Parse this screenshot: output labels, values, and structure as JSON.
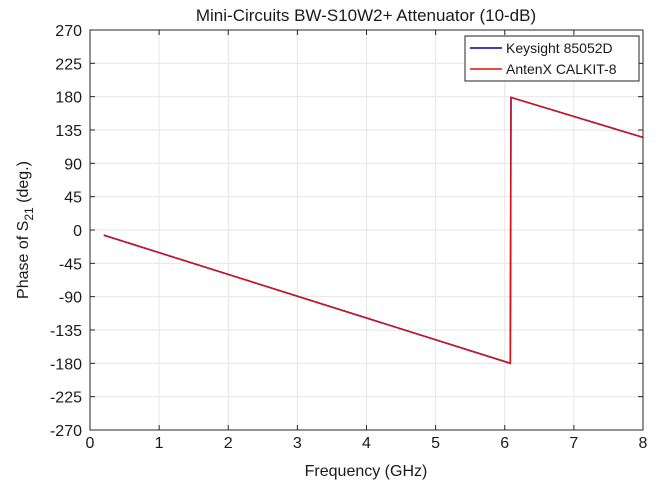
{
  "chart_data": {
    "type": "line",
    "title": "Mini-Circuits BW-S10W2+ Attenuator (10-dB)",
    "xlabel": "Frequency (GHz)",
    "ylabel_main": "Phase of S",
    "ylabel_sub": "21",
    "ylabel_tail": " (deg.)",
    "xlim": [
      0,
      8
    ],
    "ylim": [
      -270,
      270
    ],
    "xticks": [
      0,
      1,
      2,
      3,
      4,
      5,
      6,
      7,
      8
    ],
    "xtick_labels": [
      "0",
      "1",
      "2",
      "3",
      "4",
      "5",
      "6",
      "7",
      "8"
    ],
    "yticks": [
      270,
      225,
      180,
      135,
      90,
      45,
      0,
      -45,
      -90,
      -135,
      -180,
      -225,
      -270
    ],
    "ytick_labels": [
      "270",
      "225",
      "180",
      "135",
      "90",
      "45",
      "0",
      "-45",
      "-90",
      "-135",
      "-180",
      "-225",
      "-270"
    ],
    "grid": true,
    "legend_position": "top-right",
    "series": [
      {
        "name": "Keysight 85052D",
        "color": "#0000aa",
        "x": [
          0.2,
          6.08,
          6.09,
          8.0
        ],
        "y": [
          -7,
          -180,
          179,
          125
        ]
      },
      {
        "name": "AntenX CALKIT-8",
        "color": "#dd1111",
        "x": [
          0.2,
          6.08,
          6.09,
          8.0
        ],
        "y": [
          -7,
          -180,
          179,
          125
        ]
      }
    ]
  }
}
